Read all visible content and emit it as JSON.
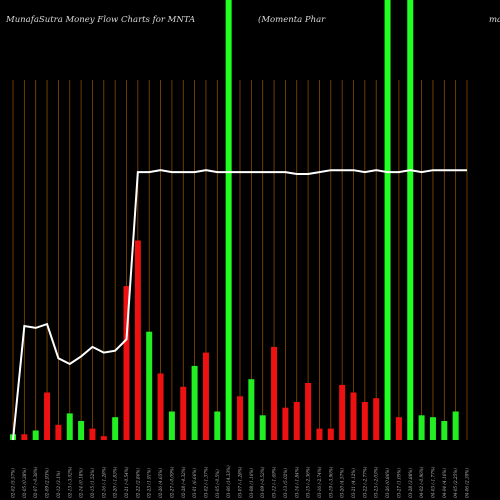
{
  "header": {
    "title_left": "MunafaSutra  Money Flow  Charts for MNTA",
    "title_mid": "(Momenta  Phar",
    "title_right": "ma"
  },
  "colors": {
    "up": "#22ee22",
    "down": "#ee1111",
    "line": "#ffffff",
    "divider": "#8a4a00",
    "highlight": "#22ff22",
    "background": "#000000"
  },
  "chart_data": {
    "type": "bar",
    "categories": [
      "02-02 (5.57%)",
      "02-05 (0.38%)",
      "02-07 (-0.38%)",
      "02-09 (2.93%)",
      "02-12 (3.1%)",
      "02-13 (-3.02%)",
      "02-14 (0.18%)",
      "02-15 (1.52%)",
      "02-16 (-1.28%)",
      "02-20 (-1.83%)",
      "02-21 (-0.54%)",
      "02-22 (2.86%)",
      "02-23 (1.91%)",
      "02-26 (4.65%)",
      "02-27 (-0.09%)",
      "02-28 (-4.32%)",
      "03-01 (6.66%)",
      "03-02 (-1.37%)",
      "03-05 (-0.5%)",
      "03-06 (14.33%)",
      "03-07 (-1.28%)",
      "03-08 (1.16%)",
      "03-09 (-0.52%)",
      "03-12 (-1.69%)",
      "03-13 (5.02%)",
      "03-14 (-1.84%)",
      "03-15 (-2.36%)",
      "03-16 (-2.74%)",
      "03-19 (-3.96%)",
      "03-20 (4.57%)",
      "03-21 (4.12%)",
      "03-22 (-2.77%)",
      "03-23 (-2.03%)",
      "03-26 (0.86%)",
      "03-27 (1.05%)",
      "03-28 (3.88%)",
      "04-02 (-0.96%)",
      "04-03 (-1.77%)",
      "04-04 (4.16%)",
      "04-05 (2.25%)",
      "04-06 (2.39%)"
    ],
    "series": [
      {
        "name": "",
        "values": [
          3,
          3,
          5,
          25,
          8,
          14,
          10,
          6,
          2,
          12,
          81,
          105,
          57,
          35,
          15,
          28,
          39,
          46,
          15,
          0,
          23,
          32,
          13,
          49,
          17,
          20,
          30,
          6,
          6,
          29,
          25,
          20,
          22,
          0,
          12,
          0,
          13,
          12,
          10,
          15,
          0
        ],
        "direction": [
          "up",
          "down",
          "up",
          "down",
          "down",
          "up",
          "up",
          "down",
          "down",
          "up",
          "down",
          "down",
          "up",
          "down",
          "up",
          "down",
          "up",
          "down",
          "up",
          "up",
          "down",
          "up",
          "up",
          "down",
          "down",
          "down",
          "down",
          "down",
          "down",
          "down",
          "down",
          "down",
          "down",
          "up",
          "down",
          "up",
          "up",
          "up",
          "up",
          "up",
          "up"
        ]
      },
      {
        "name": "",
        "kind": "line",
        "values": [
          0,
          60,
          59,
          61,
          43,
          40,
          44,
          49,
          46,
          47,
          53,
          141,
          141,
          142,
          141,
          141,
          141,
          142,
          141,
          141,
          141,
          141,
          141,
          141,
          141,
          140,
          140,
          141,
          142,
          142,
          142,
          141,
          142,
          141,
          141,
          142,
          141,
          142,
          142,
          142,
          142
        ]
      }
    ],
    "highlight_columns": [
      19,
      33,
      35
    ],
    "ylim": [
      0,
      200
    ],
    "grid": false,
    "xlabel": "",
    "ylabel": ""
  }
}
